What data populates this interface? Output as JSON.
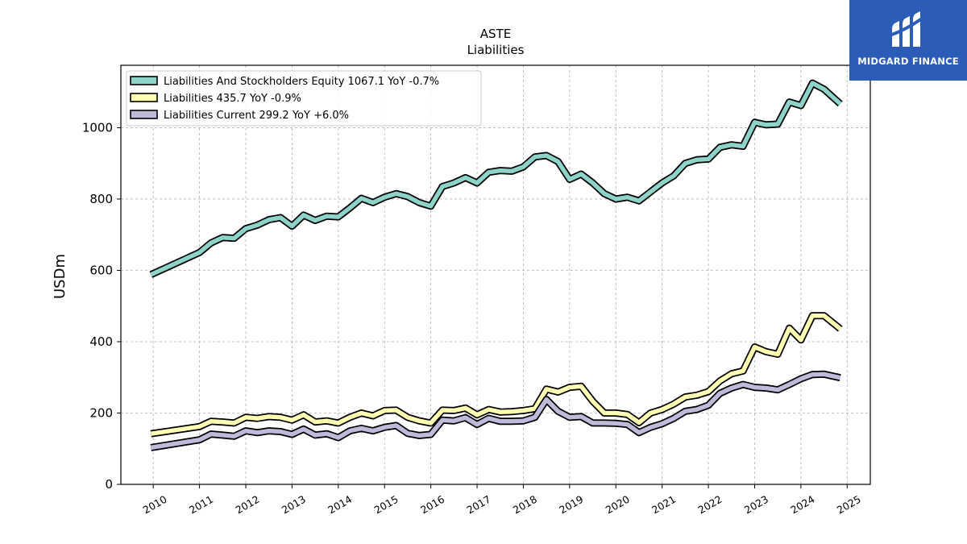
{
  "logo": {
    "name": "MIDGARD FINANCE"
  },
  "chart_data": {
    "type": "line",
    "title": "ASTE",
    "subtitle": "Liabilities",
    "xlabel": "",
    "ylabel": "USDm",
    "xlim": [
      2009.3,
      2025.5
    ],
    "ylim": [
      0,
      1175
    ],
    "x_ticks": [
      2010,
      2011,
      2012,
      2013,
      2014,
      2015,
      2016,
      2017,
      2018,
      2019,
      2020,
      2021,
      2022,
      2023,
      2024,
      2025
    ],
    "y_ticks": [
      0,
      200,
      400,
      600,
      800,
      1000
    ],
    "grid": true,
    "legend_position": "top-left",
    "series": [
      {
        "name": "Liabilities And Stockholders Equity",
        "legend": "Liabilities And Stockholders Equity  1067.1 YoY -0.7%",
        "color": "#8dd3c7",
        "x": [
          2009.95,
          2011.0,
          2011.25,
          2011.5,
          2011.75,
          2012.0,
          2012.25,
          2012.5,
          2012.75,
          2013.0,
          2013.25,
          2013.5,
          2013.75,
          2014.0,
          2014.25,
          2014.5,
          2014.75,
          2015.0,
          2015.25,
          2015.5,
          2015.75,
          2016.0,
          2016.25,
          2016.5,
          2016.75,
          2017.0,
          2017.25,
          2017.5,
          2017.75,
          2018.0,
          2018.25,
          2018.5,
          2018.75,
          2019.0,
          2019.25,
          2019.5,
          2019.75,
          2020.0,
          2020.25,
          2020.5,
          2020.75,
          2021.0,
          2021.25,
          2021.5,
          2021.75,
          2022.0,
          2022.25,
          2022.5,
          2022.75,
          2023.0,
          2023.25,
          2023.5,
          2023.75,
          2024.0,
          2024.25,
          2024.5,
          2024.85
        ],
        "values": [
          588,
          650,
          677,
          692,
          690,
          717,
          727,
          742,
          748,
          724,
          755,
          740,
          752,
          750,
          775,
          802,
          790,
          805,
          815,
          807,
          790,
          780,
          835,
          845,
          860,
          845,
          875,
          880,
          878,
          890,
          918,
          922,
          905,
          855,
          870,
          845,
          815,
          800,
          805,
          795,
          820,
          845,
          865,
          900,
          910,
          912,
          945,
          952,
          948,
          1015,
          1008,
          1010,
          1072,
          1062,
          1125,
          1108,
          1067
        ]
      },
      {
        "name": "Liabilities",
        "legend": "Liabilities  435.7 YoY -0.9%",
        "color": "#ffffb3",
        "x": [
          2009.95,
          2011.0,
          2011.25,
          2011.5,
          2011.75,
          2012.0,
          2012.25,
          2012.5,
          2012.75,
          2013.0,
          2013.25,
          2013.5,
          2013.75,
          2014.0,
          2014.25,
          2014.5,
          2014.75,
          2015.0,
          2015.25,
          2015.5,
          2015.75,
          2016.0,
          2016.25,
          2016.5,
          2016.75,
          2017.0,
          2017.25,
          2017.5,
          2017.75,
          2018.0,
          2018.25,
          2018.5,
          2018.75,
          2019.0,
          2019.25,
          2019.5,
          2019.75,
          2020.0,
          2020.25,
          2020.5,
          2020.75,
          2021.0,
          2021.25,
          2021.5,
          2021.75,
          2022.0,
          2022.25,
          2022.5,
          2022.75,
          2023.0,
          2023.25,
          2023.5,
          2023.75,
          2024.0,
          2024.25,
          2024.5,
          2024.85
        ],
        "values": [
          142,
          162,
          177,
          175,
          172,
          188,
          185,
          190,
          188,
          180,
          195,
          175,
          178,
          172,
          188,
          200,
          192,
          207,
          208,
          188,
          178,
          172,
          208,
          207,
          214,
          195,
          210,
          203,
          204,
          207,
          212,
          267,
          259,
          272,
          275,
          233,
          200,
          200,
          196,
          173,
          200,
          210,
          225,
          245,
          250,
          260,
          290,
          310,
          318,
          385,
          372,
          365,
          438,
          405,
          473,
          473,
          436
        ]
      },
      {
        "name": "Liabilities Current",
        "legend": "Liabilities Current  299.2 YoY +6.0%",
        "color": "#bebada",
        "x": [
          2009.95,
          2011.0,
          2011.25,
          2011.5,
          2011.75,
          2012.0,
          2012.25,
          2012.5,
          2012.75,
          2013.0,
          2013.25,
          2013.5,
          2013.75,
          2014.0,
          2014.25,
          2014.5,
          2014.75,
          2015.0,
          2015.25,
          2015.5,
          2015.75,
          2016.0,
          2016.25,
          2016.5,
          2016.75,
          2017.0,
          2017.25,
          2017.5,
          2017.75,
          2018.0,
          2018.25,
          2018.5,
          2018.75,
          2019.0,
          2019.25,
          2019.5,
          2019.75,
          2020.0,
          2020.25,
          2020.5,
          2020.75,
          2021.0,
          2021.25,
          2021.5,
          2021.75,
          2022.0,
          2022.25,
          2022.5,
          2022.75,
          2023.0,
          2023.25,
          2023.5,
          2023.75,
          2024.0,
          2024.25,
          2024.5,
          2024.85
        ],
        "values": [
          103,
          125,
          141,
          138,
          135,
          150,
          145,
          150,
          148,
          140,
          155,
          138,
          142,
          131,
          150,
          157,
          150,
          160,
          165,
          143,
          137,
          140,
          180,
          178,
          187,
          168,
          185,
          177,
          177,
          178,
          188,
          238,
          205,
          188,
          190,
          172,
          172,
          171,
          168,
          145,
          160,
          170,
          185,
          205,
          210,
          222,
          255,
          270,
          280,
          272,
          270,
          265,
          280,
          296,
          308,
          309,
          299
        ]
      }
    ]
  }
}
